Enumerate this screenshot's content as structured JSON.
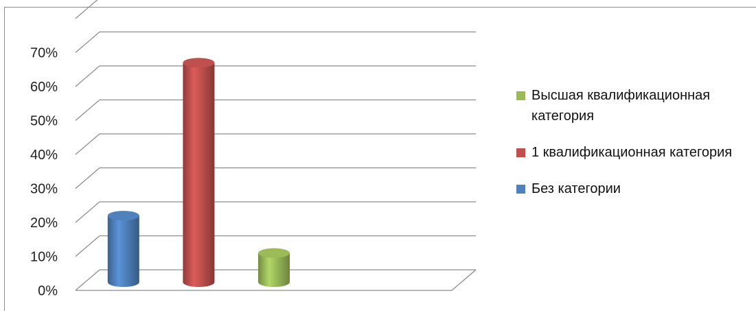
{
  "chart_data": {
    "type": "bar",
    "title": "",
    "xlabel": "",
    "ylabel": "",
    "ylim": [
      0,
      70
    ],
    "ytick_step": 10,
    "ytick_labels": [
      "0%",
      "10%",
      "20%",
      "30%",
      "40%",
      "50%",
      "60%",
      "70%"
    ],
    "grid": true,
    "bar_shape": "cylinder-3d",
    "legend_position": "right",
    "series": [
      {
        "name": "Без категории",
        "value": 22,
        "color": "#4f81bd"
      },
      {
        "name": "1 квалификационная категория",
        "value": 67,
        "color": "#c0504d"
      },
      {
        "name": "Высшая квалификационная категория",
        "value": 11,
        "color": "#9bbb59"
      }
    ],
    "legend": [
      {
        "label": "Высшая квалификационная категория",
        "color": "#9bbb59"
      },
      {
        "label": "1 квалификационная категория",
        "color": "#c0504d"
      },
      {
        "label": "Без категории",
        "color": "#4f81bd"
      }
    ]
  }
}
